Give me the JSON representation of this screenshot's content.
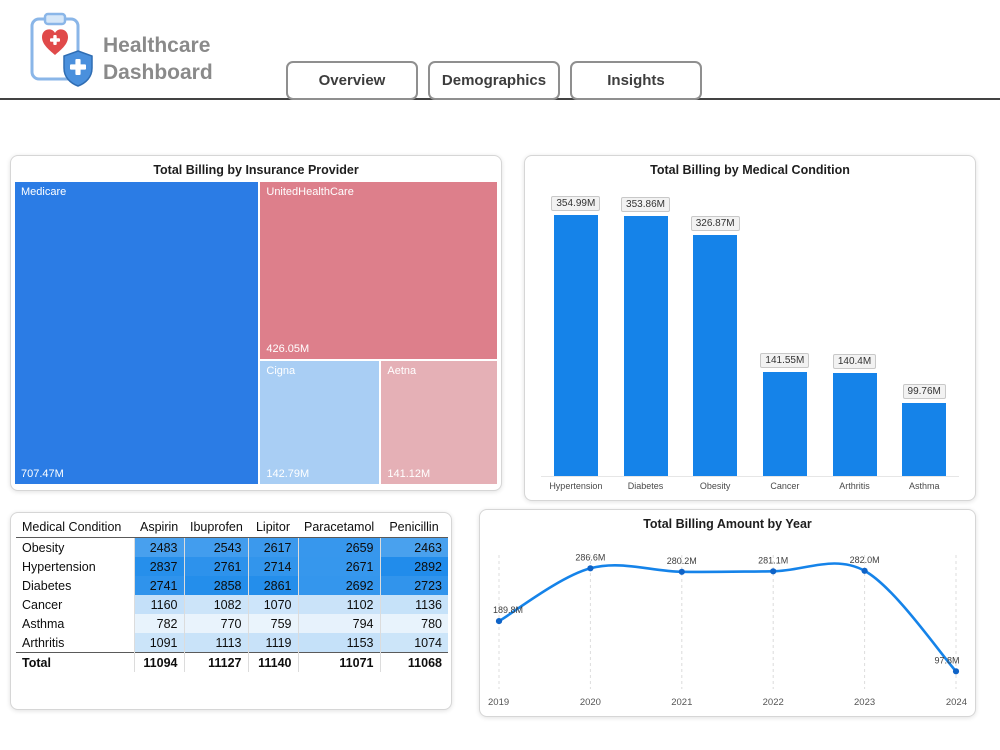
{
  "header": {
    "title_line1": "Healthcare",
    "title_line2": "Dashboard",
    "tabs": [
      "Overview",
      "Demographics",
      "Insights"
    ],
    "logo_icon": "clipboard-heart-shield"
  },
  "chart_data": [
    {
      "type": "treemap",
      "title": "Total Billing by Insurance Provider",
      "items": [
        {
          "name": "Medicare",
          "value": 707.47,
          "label": "707.47M",
          "color": "#2b7ce5"
        },
        {
          "name": "UnitedHealthCare",
          "value": 426.05,
          "label": "426.05M",
          "color": "#dd7f8b"
        },
        {
          "name": "Cigna",
          "value": 142.79,
          "label": "142.79M",
          "color": "#a9cef4"
        },
        {
          "name": "Aetna",
          "value": 141.12,
          "label": "141.12M",
          "color": "#e5b0b6"
        }
      ]
    },
    {
      "type": "bar",
      "title": "Total Billing by Medical Condition",
      "categories": [
        "Hypertension",
        "Diabetes",
        "Obesity",
        "Cancer",
        "Arthritis",
        "Asthma"
      ],
      "values": [
        354.99,
        353.86,
        326.87,
        141.55,
        140.4,
        99.76
      ],
      "labels": [
        "354.99M",
        "353.86M",
        "326.87M",
        "141.55M",
        "140.4M",
        "99.76M"
      ],
      "ylim": [
        0,
        390
      ],
      "bar_color": "#1583e9"
    },
    {
      "type": "table",
      "columns": [
        "Medical Condition",
        "Aspirin",
        "Ibuprofen",
        "Lipitor",
        "Paracetamol",
        "Penicillin"
      ],
      "rows": [
        {
          "label": "Obesity",
          "values": [
            2483,
            2543,
            2617,
            2659,
            2463
          ]
        },
        {
          "label": "Hypertension",
          "values": [
            2837,
            2761,
            2714,
            2671,
            2892
          ]
        },
        {
          "label": "Diabetes",
          "values": [
            2741,
            2858,
            2861,
            2692,
            2723
          ]
        },
        {
          "label": "Cancer",
          "values": [
            1160,
            1082,
            1070,
            1102,
            1136
          ]
        },
        {
          "label": "Asthma",
          "values": [
            782,
            770,
            759,
            794,
            780
          ]
        },
        {
          "label": "Arthritis",
          "values": [
            1091,
            1113,
            1119,
            1153,
            1074
          ]
        }
      ],
      "total_row": {
        "label": "Total",
        "values": [
          11094,
          11127,
          11140,
          11071,
          11068
        ]
      },
      "heat_min": "#eaf4fc",
      "heat_max": "#218ceb"
    },
    {
      "type": "line",
      "title": "Total Billing Amount by Year",
      "x": [
        "2019",
        "2020",
        "2021",
        "2022",
        "2023",
        "2024"
      ],
      "values": [
        189.8,
        286.6,
        280.2,
        281.1,
        282.0,
        97.8
      ],
      "labels": [
        "189.8M",
        "286.6M",
        "280.2M",
        "281.1M",
        "282.0M",
        "97.8M"
      ],
      "ylim": [
        0,
        300
      ],
      "line_color": "#1583e9"
    }
  ]
}
